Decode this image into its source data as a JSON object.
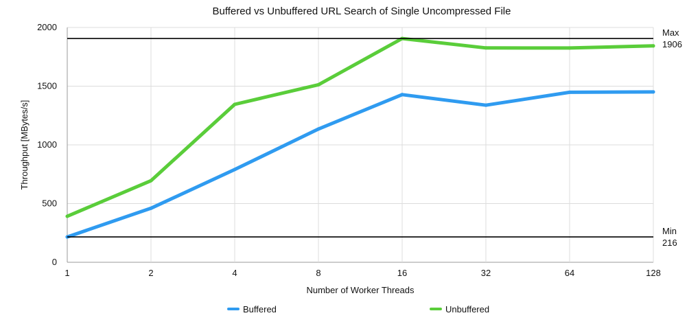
{
  "chart_data": {
    "type": "line",
    "title": "Buffered vs Unbuffered URL Search of Single Uncompressed File",
    "xlabel": "Number of Worker Threads",
    "ylabel": "Throughput [MBytes/s]",
    "categories": [
      "1",
      "2",
      "4",
      "8",
      "16",
      "32",
      "64",
      "128"
    ],
    "x_scale": "log2 (equally spaced categories)",
    "ylim": [
      0,
      2000
    ],
    "yticks": [
      "0",
      "500",
      "1000",
      "1500",
      "2000"
    ],
    "grid": true,
    "legend_position": "bottom",
    "series": [
      {
        "name": "Buffered",
        "color": "#2F9BF0",
        "values": [
          216,
          460,
          790,
          1135,
          1428,
          1338,
          1448,
          1451
        ]
      },
      {
        "name": "Unbuffered",
        "color": "#5ACD3A",
        "values": [
          392,
          695,
          1345,
          1512,
          1906,
          1826,
          1825,
          1843
        ]
      }
    ],
    "reference_lines": [
      {
        "name": "Max",
        "value_label": "1906",
        "value": 1906,
        "color": "#000000"
      },
      {
        "name": "Min",
        "value_label": "216",
        "value": 216,
        "color": "#000000"
      }
    ]
  }
}
